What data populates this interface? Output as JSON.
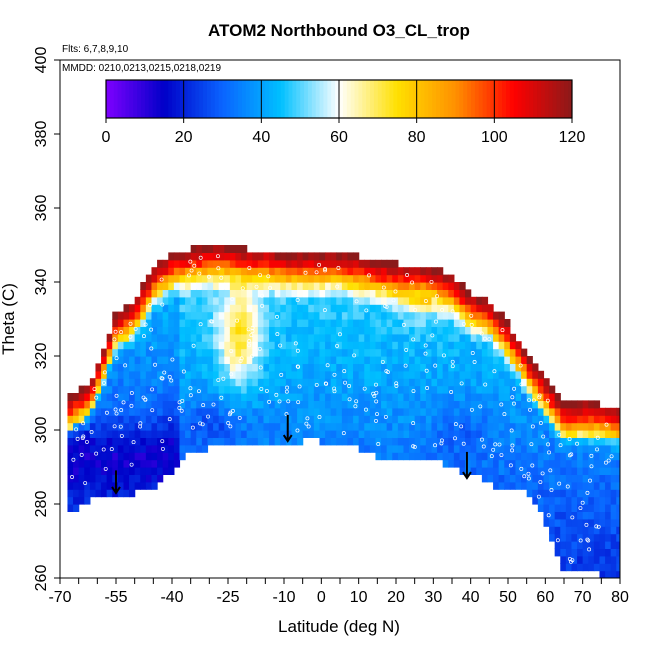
{
  "chart_data": {
    "type": "heatmap",
    "title": "ATOM2 Northbound O3_CL_trop",
    "annotations": [
      "Flts: 6,7,8,9,10",
      "MMDD: 0210,0213,0215,0218,0219"
    ],
    "xlabel": "Latitude (deg N)",
    "ylabel": "Theta (C)",
    "xlim": [
      -70,
      80
    ],
    "ylim": [
      260,
      400
    ],
    "x_ticks_labeled": [
      -70,
      -55,
      -40,
      -25,
      -10,
      0,
      10,
      20,
      30,
      40,
      50,
      60,
      70,
      80
    ],
    "y_ticks": [
      260,
      280,
      300,
      320,
      340,
      360,
      380,
      400
    ],
    "colorbar": {
      "range": [
        0,
        120
      ],
      "ticks": [
        0,
        20,
        40,
        60,
        80,
        100,
        120
      ],
      "placement": "top",
      "colors": [
        "#7f00ff",
        "#0000c8",
        "#0a64ff",
        "#00c0ff",
        "#ffffff",
        "#ffe000",
        "#ff9000",
        "#ff0000",
        "#8b1a1a"
      ]
    },
    "field_bounds": {
      "lat": [
        -68,
        -64,
        -62,
        -58,
        -55,
        -50,
        -45,
        -40,
        -35,
        -30,
        -25,
        -20,
        -15,
        -10,
        -5,
        0,
        5,
        10,
        15,
        20,
        25,
        30,
        35,
        40,
        45,
        50,
        55,
        60,
        65,
        70,
        75,
        80
      ],
      "top_theta": [
        308,
        311,
        312,
        322,
        331,
        334,
        343,
        347,
        348,
        349,
        349,
        348,
        348,
        347,
        347,
        347,
        347,
        346,
        345,
        344,
        344,
        343,
        341,
        336,
        334,
        328,
        320,
        313,
        306,
        307,
        306,
        305
      ],
      "bottom_theta": [
        278,
        281,
        282,
        283,
        283,
        284,
        285,
        290,
        295,
        296,
        297,
        297,
        297,
        297,
        298,
        298,
        296,
        296,
        294,
        293,
        293,
        293,
        291,
        289,
        287,
        284,
        284,
        276,
        262,
        262,
        262,
        260
      ]
    },
    "descent_arrows": [
      {
        "lat": -55,
        "theta_from": 288,
        "theta_to": 283
      },
      {
        "lat": -9,
        "theta_from": 303,
        "theta_to": 297
      },
      {
        "lat": 39,
        "theta_from": 293,
        "theta_to": 287
      }
    ]
  }
}
